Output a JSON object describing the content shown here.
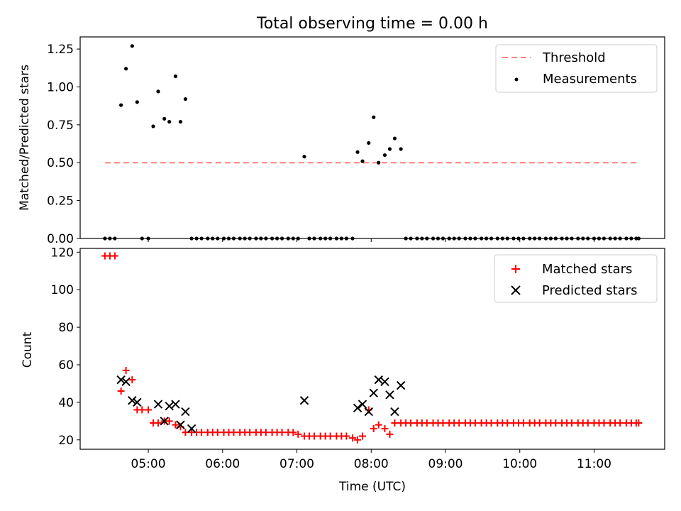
{
  "chart_data": [
    {
      "type": "scatter",
      "title": "Total observing time = 0.00 h",
      "xlabel": "",
      "ylabel": "Matched/Predicted stars",
      "xlim": [
        "04:05",
        "11:57"
      ],
      "ylim": [
        0,
        1.33
      ],
      "xticks": [
        "05:00",
        "06:00",
        "07:00",
        "08:00",
        "09:00",
        "10:00",
        "11:00"
      ],
      "yticks": [
        "0.00",
        "0.25",
        "0.50",
        "0.75",
        "1.00",
        "1.25"
      ],
      "legend_position": "top-right",
      "series": [
        {
          "name": "Threshold",
          "kind": "dashed-line",
          "color": "#ff7f7f",
          "x": [
            "04:25",
            "11:37"
          ],
          "y": [
            0.5,
            0.5
          ]
        },
        {
          "name": "Measurements",
          "kind": "dot",
          "color": "#000000",
          "x": [
            "04:25",
            "04:29",
            "04:33",
            "04:38",
            "04:42",
            "04:47",
            "04:51",
            "04:55",
            "05:00",
            "05:04",
            "05:08",
            "05:13",
            "05:17",
            "05:22",
            "05:26",
            "05:30",
            "05:35",
            "05:39",
            "05:43",
            "05:48",
            "05:52",
            "05:56",
            "06:01",
            "06:05",
            "06:09",
            "06:14",
            "06:18",
            "06:22",
            "06:27",
            "06:31",
            "06:35",
            "06:40",
            "06:44",
            "06:48",
            "06:53",
            "06:57",
            "07:01",
            "07:06",
            "07:10",
            "07:14",
            "07:19",
            "07:23",
            "07:27",
            "07:32",
            "07:36",
            "07:40",
            "07:45",
            "07:49",
            "07:53",
            "07:58",
            "08:02",
            "08:06",
            "08:11",
            "08:15",
            "08:19",
            "08:24",
            "08:28",
            "08:32",
            "08:37",
            "08:41",
            "08:45",
            "08:50",
            "08:54",
            "08:58",
            "09:03",
            "09:07",
            "09:11",
            "09:16",
            "09:20",
            "09:24",
            "09:29",
            "09:33",
            "09:37",
            "09:42",
            "09:46",
            "09:50",
            "09:55",
            "09:59",
            "10:03",
            "10:08",
            "10:12",
            "10:16",
            "10:21",
            "10:25",
            "10:29",
            "10:34",
            "10:38",
            "10:42",
            "10:47",
            "10:51",
            "10:55",
            "11:00",
            "11:04",
            "11:08",
            "11:13",
            "11:17",
            "11:21",
            "11:26",
            "11:30",
            "11:34",
            "11:36"
          ],
          "y": [
            0,
            0,
            0,
            0.88,
            1.12,
            1.27,
            0.9,
            0,
            0,
            0.74,
            0.97,
            0.79,
            0.77,
            1.07,
            0.77,
            0.92,
            0,
            0,
            0,
            0,
            0,
            0,
            0,
            0,
            0,
            0,
            0,
            0,
            0,
            0,
            0,
            0,
            0,
            0,
            0,
            0,
            0,
            0.54,
            0,
            0,
            0,
            0,
            0,
            0,
            0,
            0,
            0,
            0.57,
            0.51,
            0.63,
            0.8,
            0.5,
            0.55,
            0.59,
            0.66,
            0.59,
            0,
            0,
            0,
            0,
            0,
            0,
            0,
            0,
            0,
            0,
            0,
            0,
            0,
            0,
            0,
            0,
            0,
            0,
            0,
            0,
            0,
            0,
            0,
            0,
            0,
            0,
            0,
            0,
            0,
            0,
            0,
            0,
            0,
            0,
            0,
            0,
            0,
            0,
            0,
            0,
            0,
            0,
            0,
            0,
            0
          ]
        }
      ]
    },
    {
      "type": "scatter",
      "title": "",
      "xlabel": "Time (UTC)",
      "ylabel": "Count",
      "xlim": [
        "04:05",
        "11:57"
      ],
      "ylim": [
        15,
        122
      ],
      "xticks": [
        "05:00",
        "06:00",
        "07:00",
        "08:00",
        "09:00",
        "10:00",
        "11:00"
      ],
      "yticks": [
        "20",
        "40",
        "60",
        "80",
        "100",
        "120"
      ],
      "legend_position": "top-right",
      "series": [
        {
          "name": "Matched stars",
          "kind": "plus",
          "color": "#ff0000",
          "x": [
            "04:25",
            "04:29",
            "04:33",
            "04:38",
            "04:42",
            "04:47",
            "04:51",
            "04:55",
            "05:00",
            "05:04",
            "05:08",
            "05:13",
            "05:17",
            "05:22",
            "05:26",
            "05:30",
            "05:35",
            "05:39",
            "05:43",
            "05:48",
            "05:52",
            "05:56",
            "06:01",
            "06:05",
            "06:09",
            "06:14",
            "06:18",
            "06:22",
            "06:27",
            "06:31",
            "06:35",
            "06:40",
            "06:44",
            "06:48",
            "06:53",
            "06:57",
            "07:01",
            "07:06",
            "07:10",
            "07:14",
            "07:19",
            "07:23",
            "07:27",
            "07:32",
            "07:36",
            "07:40",
            "07:45",
            "07:49",
            "07:53",
            "07:58",
            "08:02",
            "08:06",
            "08:11",
            "08:15",
            "08:19",
            "08:24",
            "08:28",
            "08:32",
            "08:37",
            "08:41",
            "08:45",
            "08:50",
            "08:54",
            "08:58",
            "09:03",
            "09:07",
            "09:11",
            "09:16",
            "09:20",
            "09:24",
            "09:29",
            "09:33",
            "09:37",
            "09:42",
            "09:46",
            "09:50",
            "09:55",
            "09:59",
            "10:03",
            "10:08",
            "10:12",
            "10:16",
            "10:21",
            "10:25",
            "10:29",
            "10:34",
            "10:38",
            "10:42",
            "10:47",
            "10:51",
            "10:55",
            "11:00",
            "11:04",
            "11:08",
            "11:13",
            "11:17",
            "11:21",
            "11:26",
            "11:30",
            "11:34",
            "11:36"
          ],
          "y": [
            118,
            118,
            118,
            46,
            57,
            52,
            36,
            36,
            36,
            29,
            29,
            30,
            30,
            28,
            27,
            24,
            24,
            24,
            24,
            24,
            24,
            24,
            24,
            24,
            24,
            24,
            24,
            24,
            24,
            24,
            24,
            24,
            24,
            24,
            24,
            24,
            23,
            22,
            22,
            22,
            22,
            22,
            22,
            22,
            22,
            22,
            21,
            20,
            22,
            36,
            26,
            28,
            26,
            23,
            29,
            29,
            29,
            29,
            29,
            29,
            29,
            29,
            29,
            29,
            29,
            29,
            29,
            29,
            29,
            29,
            29,
            29,
            29,
            29,
            29,
            29,
            29,
            29,
            29,
            29,
            29,
            29,
            29,
            29,
            29,
            29,
            29,
            29,
            29,
            29,
            29,
            29,
            29,
            29,
            29,
            29,
            29,
            29,
            29,
            29,
            29
          ]
        },
        {
          "name": "Predicted stars",
          "kind": "x",
          "color": "#000000",
          "x": [
            "04:38",
            "04:42",
            "04:47",
            "04:51",
            "05:08",
            "05:13",
            "05:17",
            "05:22",
            "05:26",
            "05:30",
            "05:35",
            "07:06",
            "07:49",
            "07:53",
            "07:58",
            "08:02",
            "08:06",
            "08:11",
            "08:15",
            "08:19",
            "08:24"
          ],
          "y": [
            52,
            51,
            41,
            40,
            39,
            30,
            38,
            39,
            28,
            35,
            26,
            41,
            37,
            39,
            35,
            45,
            52,
            51,
            44,
            35,
            49
          ]
        }
      ]
    }
  ]
}
